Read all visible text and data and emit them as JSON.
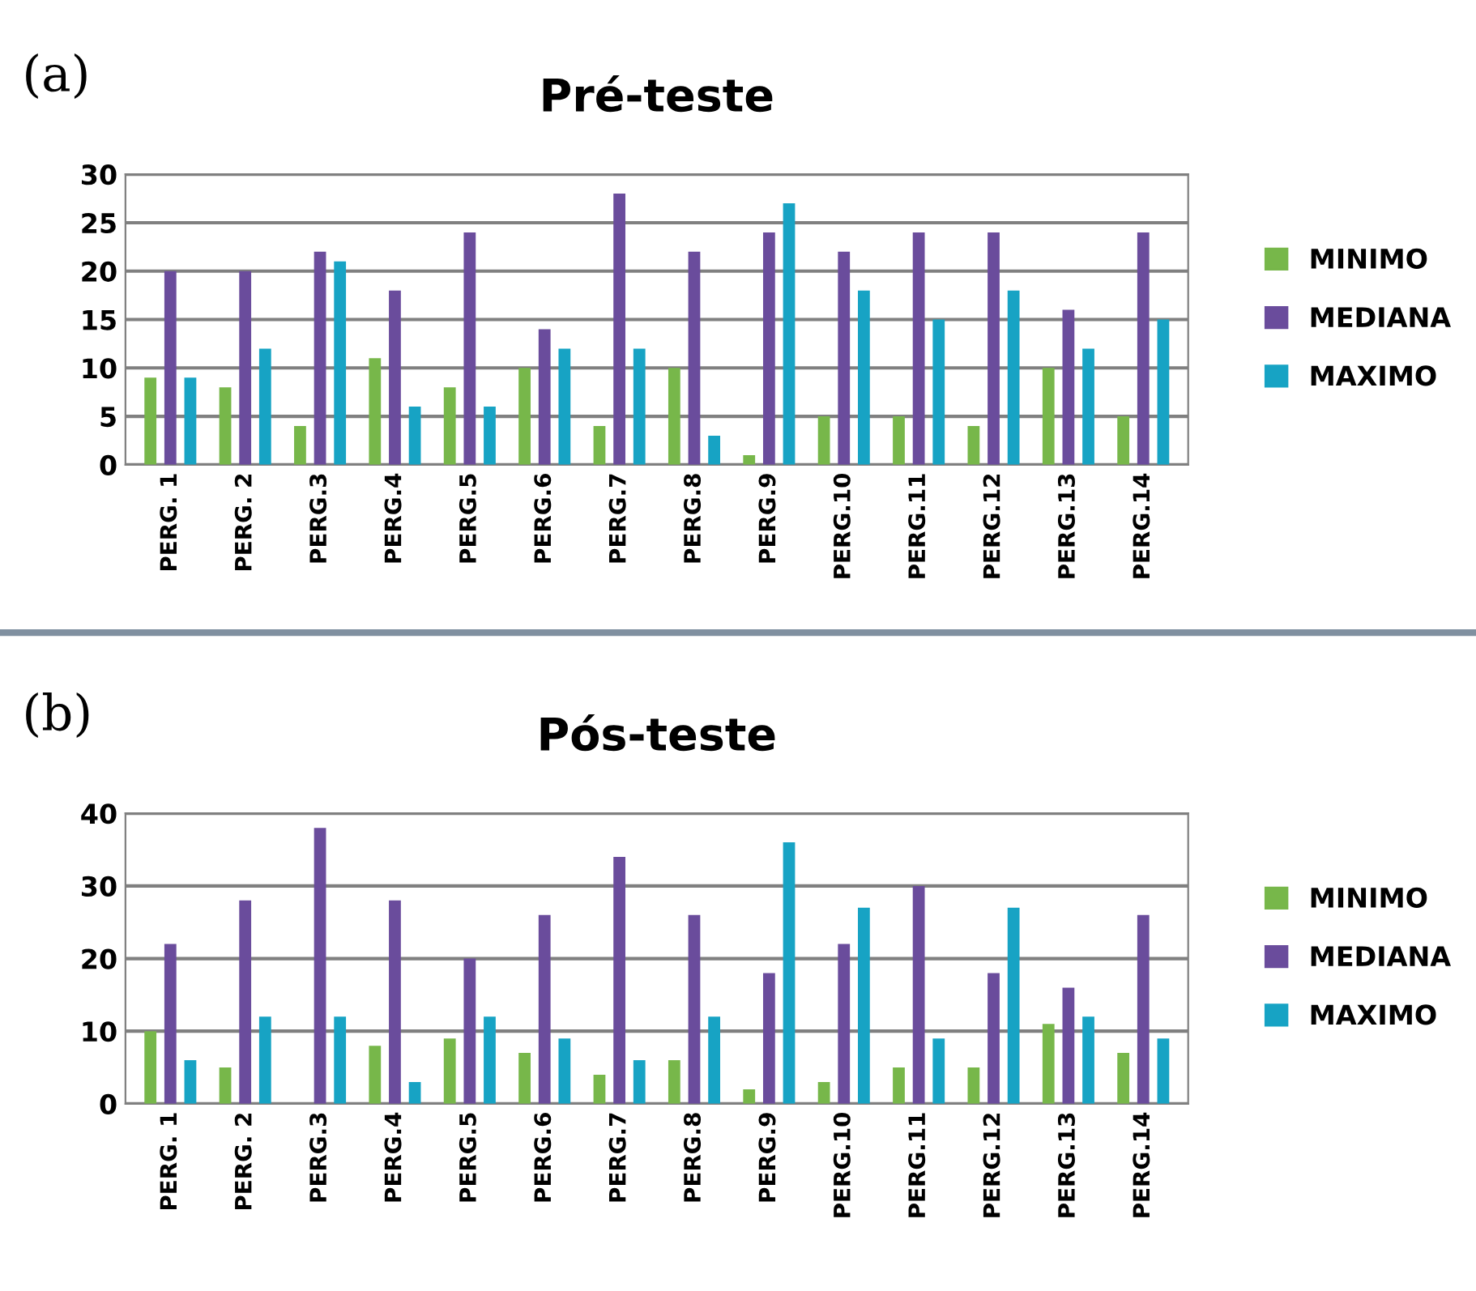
{
  "chart_data": [
    {
      "type": "bar",
      "title": "Pré-teste",
      "annotations": [
        "(a)"
      ],
      "categories": [
        "PERG. 1",
        "PERG. 2",
        "PERG.3",
        "PERG.4",
        "PERG.5",
        "PERG.6",
        "PERG.7",
        "PERG.8",
        "PERG.9",
        "PERG.10",
        "PERG.11",
        "PERG.12",
        "PERG.13",
        "PERG.14"
      ],
      "series": [
        {
          "name": "MINIMO",
          "color": "#77b74a",
          "values": [
            9,
            8,
            4,
            11,
            8,
            10,
            4,
            10,
            1,
            5,
            5,
            4,
            10,
            5
          ]
        },
        {
          "name": "MEDIANA",
          "color": "#6a4c9c",
          "values": [
            20,
            20,
            22,
            18,
            24,
            14,
            28,
            22,
            24,
            22,
            24,
            24,
            16,
            24
          ]
        },
        {
          "name": "MAXIMO",
          "color": "#17a3c4",
          "values": [
            9,
            12,
            21,
            6,
            6,
            12,
            12,
            3,
            27,
            18,
            15,
            18,
            12,
            15
          ]
        }
      ],
      "ylim": [
        0,
        30
      ],
      "yticks": [
        0,
        5,
        10,
        15,
        20,
        25,
        30
      ],
      "grid": "y",
      "legend": "right"
    },
    {
      "type": "bar",
      "title": "Pós-teste",
      "annotations": [
        "(b)"
      ],
      "categories": [
        "PERG. 1",
        "PERG. 2",
        "PERG.3",
        "PERG.4",
        "PERG.5",
        "PERG.6",
        "PERG.7",
        "PERG.8",
        "PERG.9",
        "PERG.10",
        "PERG.11",
        "PERG.12",
        "PERG.13",
        "PERG.14"
      ],
      "series": [
        {
          "name": "MINIMO",
          "color": "#77b74a",
          "values": [
            10,
            5,
            0,
            8,
            9,
            7,
            4,
            6,
            2,
            3,
            5,
            5,
            11,
            7
          ]
        },
        {
          "name": "MEDIANA",
          "color": "#6a4c9c",
          "values": [
            22,
            28,
            38,
            28,
            20,
            26,
            34,
            26,
            18,
            22,
            30,
            18,
            16,
            26
          ]
        },
        {
          "name": "MAXIMO",
          "color": "#17a3c4",
          "values": [
            6,
            12,
            12,
            3,
            12,
            9,
            6,
            12,
            36,
            27,
            9,
            27,
            12,
            9
          ]
        }
      ],
      "ylim": [
        0,
        40
      ],
      "yticks": [
        0,
        10,
        20,
        30,
        40
      ],
      "grid": "y",
      "legend": "right"
    }
  ]
}
